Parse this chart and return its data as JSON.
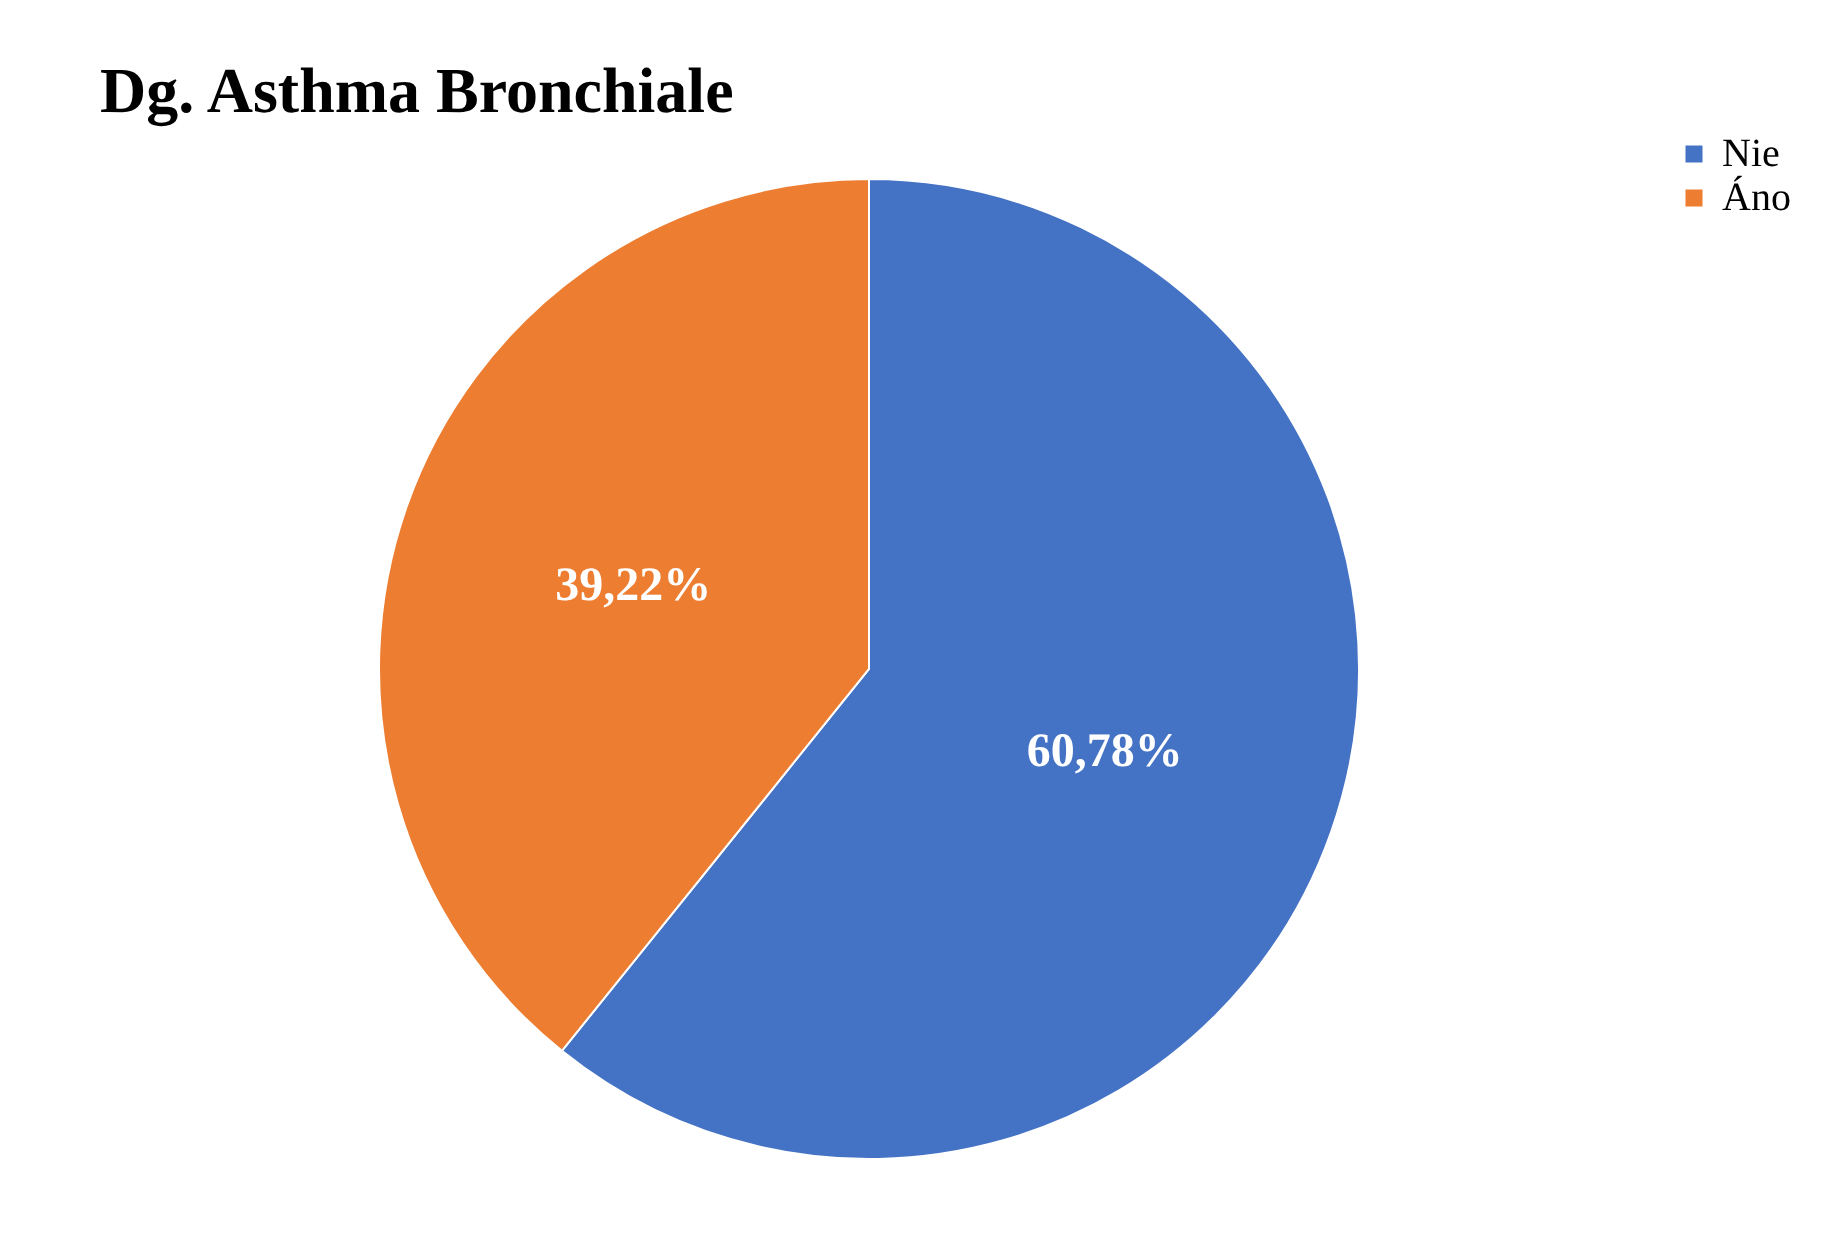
{
  "chart_data": {
    "type": "pie",
    "title": "Dg. Asthma Bronchiale",
    "categories": [
      "Nie",
      "Áno"
    ],
    "values": [
      60.78,
      39.22
    ],
    "colors": [
      "#4472c4",
      "#ed7d31"
    ],
    "value_labels": [
      "60,78%",
      "39,22%"
    ],
    "legend": "right"
  }
}
